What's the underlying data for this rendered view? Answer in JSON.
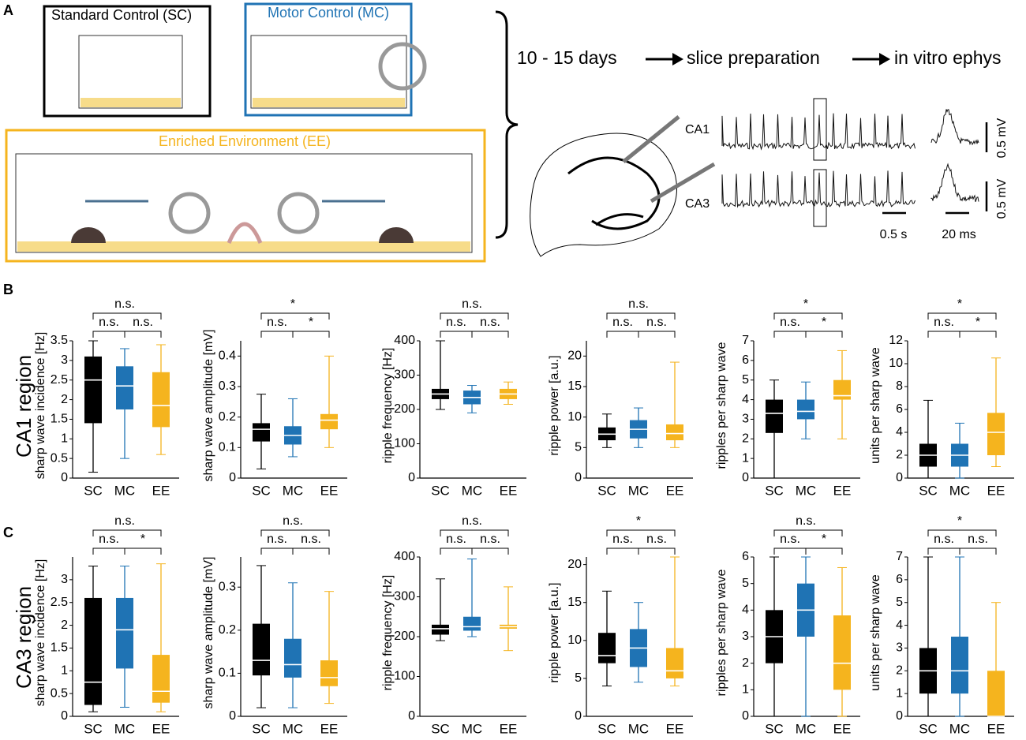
{
  "panels": {
    "a": "A",
    "b": "B",
    "c": "C"
  },
  "schematic": {
    "sc": "Standard Control (SC)",
    "mc": "Motor Control (MC)",
    "ee": "Enriched Environment (EE)",
    "step1": "10 - 15 days",
    "step2": "slice preparation",
    "step3": "in vitro ephys",
    "ca1": "CA1",
    "ca3": "CA3",
    "mv1": "0.5 mV",
    "mv2": "0.5 mV",
    "s": "0.5 s",
    "ms": "20 ms"
  },
  "rows": {
    "ca1": "CA1 region",
    "ca3": "CA3 region"
  },
  "chart_data": [
    {
      "type": "box",
      "ylabel": "sharp wave incidence [Hz]",
      "categories": [
        "SC",
        "MC",
        "EE"
      ],
      "colors": [
        "#000000",
        "#1f73b4",
        "#f5b41e"
      ],
      "ylim": [
        0,
        3.5
      ],
      "yticks": [
        0,
        0.5,
        1,
        1.5,
        2,
        2.5,
        3,
        3.5
      ],
      "boxes": [
        {
          "min": 0.15,
          "q1": 1.4,
          "median": 2.5,
          "q3": 3.1,
          "max": 3.5
        },
        {
          "min": 0.5,
          "q1": 1.75,
          "median": 2.35,
          "q3": 2.85,
          "max": 3.3
        },
        {
          "min": 0.6,
          "q1": 1.3,
          "median": 1.85,
          "q3": 2.7,
          "max": 3.4
        }
      ],
      "sig_top": "n.s.",
      "sig_left": "n.s.",
      "sig_right": "n.s."
    },
    {
      "type": "box",
      "ylabel": "sharp wave amplitude [mV]",
      "categories": [
        "SC",
        "MC",
        "EE"
      ],
      "colors": [
        "#000000",
        "#1f73b4",
        "#f5b41e"
      ],
      "ylim": [
        0,
        0.45
      ],
      "yticks": [
        0,
        0.1,
        0.2,
        0.3,
        0.4
      ],
      "boxes": [
        {
          "min": 0.03,
          "q1": 0.12,
          "median": 0.16,
          "q3": 0.18,
          "max": 0.275
        },
        {
          "min": 0.07,
          "q1": 0.11,
          "median": 0.14,
          "q3": 0.17,
          "max": 0.26
        },
        {
          "min": 0.1,
          "q1": 0.16,
          "median": 0.19,
          "q3": 0.21,
          "max": 0.4
        }
      ],
      "sig_top": "*",
      "sig_left": "n.s.",
      "sig_right": "*"
    },
    {
      "type": "box",
      "ylabel": "ripple frequency [Hz]",
      "categories": [
        "SC",
        "MC",
        "EE"
      ],
      "colors": [
        "#000000",
        "#1f73b4",
        "#f5b41e"
      ],
      "ylim": [
        0,
        400
      ],
      "yticks": [
        0,
        100,
        200,
        300,
        400
      ],
      "boxes": [
        {
          "min": 200,
          "q1": 230,
          "median": 245,
          "q3": 260,
          "max": 400
        },
        {
          "min": 190,
          "q1": 215,
          "median": 235,
          "q3": 255,
          "max": 270
        },
        {
          "min": 215,
          "q1": 230,
          "median": 245,
          "q3": 260,
          "max": 280
        }
      ],
      "sig_top": "n.s.",
      "sig_left": "n.s.",
      "sig_right": "n.s."
    },
    {
      "type": "box",
      "ylabel": "ripple power [a.u.]",
      "categories": [
        "SC",
        "MC",
        "EE"
      ],
      "colors": [
        "#000000",
        "#1f73b4",
        "#f5b41e"
      ],
      "ylim": [
        0,
        22.5
      ],
      "yticks": [
        0,
        5,
        10,
        15,
        20
      ],
      "boxes": [
        {
          "min": 5,
          "q1": 6.2,
          "median": 7.2,
          "q3": 8.3,
          "max": 10.5
        },
        {
          "min": 5,
          "q1": 6.5,
          "median": 8,
          "q3": 9.5,
          "max": 11.5
        },
        {
          "min": 5,
          "q1": 6.2,
          "median": 7.3,
          "q3": 8.8,
          "max": 19
        }
      ],
      "sig_top": "n.s.",
      "sig_left": "n.s.",
      "sig_right": "n.s."
    },
    {
      "type": "box",
      "ylabel": "ripples per sharp wave",
      "categories": [
        "SC",
        "MC",
        "EE"
      ],
      "colors": [
        "#000000",
        "#1f73b4",
        "#f5b41e"
      ],
      "ylim": [
        0,
        7
      ],
      "yticks": [
        0,
        1,
        2,
        3,
        4,
        5,
        6,
        7
      ],
      "boxes": [
        {
          "min": 0,
          "q1": 2.3,
          "median": 3.3,
          "q3": 4,
          "max": 5
        },
        {
          "min": 2,
          "q1": 3,
          "median": 3.4,
          "q3": 4,
          "max": 4.9
        },
        {
          "min": 2,
          "q1": 4,
          "median": 4.2,
          "q3": 5,
          "max": 6.5
        }
      ],
      "sig_top": "*",
      "sig_left": "n.s.",
      "sig_right": "*"
    },
    {
      "type": "box",
      "ylabel": "units per sharp wave",
      "categories": [
        "SC",
        "MC",
        "EE"
      ],
      "colors": [
        "#000000",
        "#1f73b4",
        "#f5b41e"
      ],
      "ylim": [
        0,
        12
      ],
      "yticks": [
        0,
        2,
        4,
        6,
        8,
        10,
        12
      ],
      "boxes": [
        {
          "min": 0,
          "q1": 1,
          "median": 2,
          "q3": 3,
          "max": 6.8
        },
        {
          "min": 0,
          "q1": 1,
          "median": 2,
          "q3": 3,
          "max": 4.8
        },
        {
          "min": 1,
          "q1": 2,
          "median": 4,
          "q3": 5.7,
          "max": 10.5
        }
      ],
      "sig_top": "*",
      "sig_left": "n.s.",
      "sig_right": "*"
    },
    {
      "type": "box",
      "ylabel": "sharp wave incidence [Hz]",
      "categories": [
        "SC",
        "MC",
        "EE"
      ],
      "colors": [
        "#000000",
        "#1f73b4",
        "#f5b41e"
      ],
      "ylim": [
        0,
        3.5
      ],
      "yticks": [
        0,
        0.5,
        1,
        1.5,
        2,
        2.5,
        3
      ],
      "boxes": [
        {
          "min": 0.1,
          "q1": 0.25,
          "median": 0.75,
          "q3": 2.6,
          "max": 3.3
        },
        {
          "min": 0.2,
          "q1": 1.05,
          "median": 1.9,
          "q3": 2.6,
          "max": 3.3
        },
        {
          "min": 0.1,
          "q1": 0.3,
          "median": 0.55,
          "q3": 1.35,
          "max": 3.35
        }
      ],
      "sig_top": "n.s.",
      "sig_left": "n.s.",
      "sig_right": "*"
    },
    {
      "type": "box",
      "ylabel": "sharp wave amplitude [mV]",
      "categories": [
        "SC",
        "MC",
        "EE"
      ],
      "colors": [
        "#000000",
        "#1f73b4",
        "#f5b41e"
      ],
      "ylim": [
        0,
        0.37
      ],
      "yticks": [
        0,
        0.1,
        0.2,
        0.3
      ],
      "boxes": [
        {
          "min": 0.02,
          "q1": 0.095,
          "median": 0.13,
          "q3": 0.215,
          "max": 0.35
        },
        {
          "min": 0.02,
          "q1": 0.09,
          "median": 0.12,
          "q3": 0.18,
          "max": 0.31
        },
        {
          "min": 0.03,
          "q1": 0.07,
          "median": 0.09,
          "q3": 0.13,
          "max": 0.29
        }
      ],
      "sig_top": "n.s.",
      "sig_left": "n.s.",
      "sig_right": "n.s."
    },
    {
      "type": "box",
      "ylabel": "ripple frequency [Hz]",
      "categories": [
        "SC",
        "MC",
        "EE"
      ],
      "colors": [
        "#000000",
        "#1f73b4",
        "#f5b41e"
      ],
      "ylim": [
        0,
        400
      ],
      "yticks": [
        0,
        100,
        200,
        300,
        400
      ],
      "boxes": [
        {
          "min": 190,
          "q1": 205,
          "median": 220,
          "q3": 230,
          "max": 345
        },
        {
          "min": 200,
          "q1": 215,
          "median": 225,
          "q3": 250,
          "max": 395
        },
        {
          "min": 165,
          "q1": 220,
          "median": 225,
          "q3": 230,
          "max": 325
        }
      ],
      "sig_top": "n.s.",
      "sig_left": "n.s.",
      "sig_right": "n.s."
    },
    {
      "type": "box",
      "ylabel": "ripple power [a.u.]",
      "categories": [
        "SC",
        "MC",
        "EE"
      ],
      "colors": [
        "#000000",
        "#1f73b4",
        "#f5b41e"
      ],
      "ylim": [
        0,
        21
      ],
      "yticks": [
        0,
        5,
        10,
        15,
        20
      ],
      "boxes": [
        {
          "min": 4,
          "q1": 7,
          "median": 8,
          "q3": 11,
          "max": 16.5
        },
        {
          "min": 4.5,
          "q1": 6.5,
          "median": 9,
          "q3": 11.5,
          "max": 15
        },
        {
          "min": 4,
          "q1": 5,
          "median": 6,
          "q3": 9,
          "max": 21
        }
      ],
      "sig_top": "*",
      "sig_left": "n.s.",
      "sig_right": "n.s."
    },
    {
      "type": "box",
      "ylabel": "ripples per sharp wave",
      "categories": [
        "SC",
        "MC",
        "EE"
      ],
      "colors": [
        "#000000",
        "#1f73b4",
        "#f5b41e"
      ],
      "ylim": [
        0,
        6
      ],
      "yticks": [
        0,
        1,
        2,
        3,
        4,
        5,
        6
      ],
      "boxes": [
        {
          "min": 0,
          "q1": 2,
          "median": 3,
          "q3": 4,
          "max": 6
        },
        {
          "min": 0,
          "q1": 3,
          "median": 4,
          "q3": 5,
          "max": 6
        },
        {
          "min": 0,
          "q1": 1,
          "median": 2,
          "q3": 3.8,
          "max": 5.6
        }
      ],
      "sig_top": "n.s.",
      "sig_left": "n.s.",
      "sig_right": "*"
    },
    {
      "type": "box",
      "ylabel": "units per sharp wave",
      "categories": [
        "SC",
        "MC",
        "EE"
      ],
      "colors": [
        "#000000",
        "#1f73b4",
        "#f5b41e"
      ],
      "ylim": [
        0,
        7
      ],
      "yticks": [
        0,
        1,
        2,
        3,
        4,
        5,
        6,
        7
      ],
      "boxes": [
        {
          "min": 0,
          "q1": 1,
          "median": 2,
          "q3": 3,
          "max": 7
        },
        {
          "min": 0,
          "q1": 1,
          "median": 2,
          "q3": 3.5,
          "max": 7
        },
        {
          "min": 0,
          "q1": 0,
          "median": 0,
          "q3": 2,
          "max": 5
        }
      ],
      "sig_top": "*",
      "sig_left": "n.s.",
      "sig_right": "n.s."
    }
  ]
}
